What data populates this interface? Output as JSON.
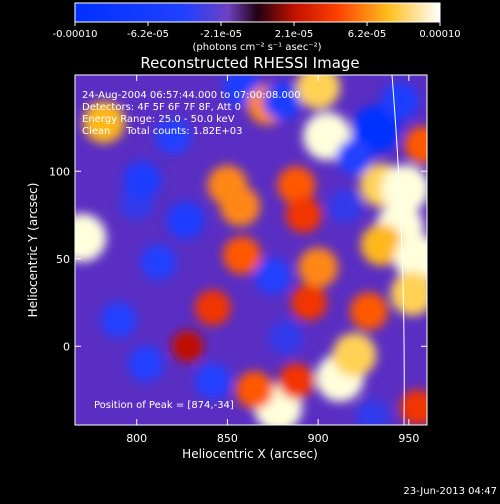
{
  "chart_data": {
    "type": "heatmap",
    "title": "Reconstructed RHESSI Image",
    "xlabel": "Heliocentric X (arcsec)",
    "ylabel": "Heliocentric Y (arcsec)",
    "xlim": [
      766,
      960
    ],
    "ylim": [
      -45,
      155
    ],
    "x_ticks": [
      800,
      850,
      900,
      950
    ],
    "y_ticks": [
      0,
      50,
      100
    ],
    "grid": false,
    "colorbar": {
      "position": "top",
      "range": [
        -0.0001,
        0.0001
      ],
      "ticks": [
        "-0.00010",
        "-6.2e-05",
        "-2.1e-05",
        "2.1e-05",
        "6.2e-05",
        "0.00010"
      ],
      "units_label": "(photons cm⁻² s⁻¹ asec⁻²)"
    },
    "annotations": [
      "24-Aug-2004 06:57:44.000 to 07:00:08.000",
      "Detectors: 4F 5F 6F 7F 8F, Att 0",
      "Energy Range: 25.0 - 50.0 keV",
      "Clean     Total counts: 1.82E+03"
    ],
    "peak_label": "Position of Peak = [874,-34]",
    "peak_position": [
      874,
      -34
    ],
    "blobs": [
      {
        "x": 770,
        "y": 62,
        "v": 0.0001
      },
      {
        "x": 782,
        "y": 128,
        "v": 7e-05
      },
      {
        "x": 800,
        "y": 82,
        "v": -3e-05
      },
      {
        "x": 803,
        "y": 95,
        "v": -5e-05
      },
      {
        "x": 820,
        "y": 120,
        "v": -4e-05
      },
      {
        "x": 858,
        "y": 148,
        "v": -5e-05
      },
      {
        "x": 872,
        "y": 138,
        "v": 6e-05
      },
      {
        "x": 850,
        "y": 92,
        "v": 6e-05
      },
      {
        "x": 857,
        "y": 80,
        "v": 6e-05
      },
      {
        "x": 858,
        "y": 52,
        "v": 5e-05
      },
      {
        "x": 842,
        "y": 22,
        "v": 4e-05
      },
      {
        "x": 827,
        "y": 72,
        "v": -5e-05
      },
      {
        "x": 812,
        "y": 48,
        "v": -4e-05
      },
      {
        "x": 790,
        "y": 15,
        "v": -4e-05
      },
      {
        "x": 805,
        "y": -10,
        "v": -4e-05
      },
      {
        "x": 842,
        "y": -20,
        "v": -4e-05
      },
      {
        "x": 828,
        "y": 0,
        "v": 2e-05
      },
      {
        "x": 880,
        "y": 140,
        "v": -5e-05
      },
      {
        "x": 900,
        "y": 148,
        "v": 8e-05
      },
      {
        "x": 905,
        "y": 120,
        "v": 0.0001
      },
      {
        "x": 888,
        "y": 92,
        "v": 5e-05
      },
      {
        "x": 892,
        "y": 75,
        "v": 4e-05
      },
      {
        "x": 900,
        "y": 45,
        "v": 6e-05
      },
      {
        "x": 895,
        "y": 25,
        "v": 4e-05
      },
      {
        "x": 875,
        "y": 40,
        "v": -4e-05
      },
      {
        "x": 882,
        "y": 5,
        "v": -3e-05
      },
      {
        "x": 878,
        "y": -35,
        "v": 0.0001
      },
      {
        "x": 865,
        "y": -25,
        "v": 5e-05
      },
      {
        "x": 888,
        "y": -20,
        "v": 4e-05
      },
      {
        "x": 912,
        "y": -18,
        "v": 0.0001
      },
      {
        "x": 920,
        "y": -5,
        "v": 8e-05
      },
      {
        "x": 928,
        "y": 20,
        "v": 5e-05
      },
      {
        "x": 935,
        "y": 92,
        "v": 8e-05
      },
      {
        "x": 948,
        "y": 90,
        "v": 0.0001
      },
      {
        "x": 945,
        "y": 68,
        "v": 0.0001
      },
      {
        "x": 935,
        "y": 58,
        "v": 7e-05
      },
      {
        "x": 955,
        "y": 50,
        "v": 0.0001
      },
      {
        "x": 952,
        "y": 30,
        "v": 8e-05
      },
      {
        "x": 958,
        "y": 115,
        "v": 5e-05
      },
      {
        "x": 932,
        "y": 124,
        "v": -0.0001
      },
      {
        "x": 945,
        "y": 140,
        "v": -5e-05
      },
      {
        "x": 920,
        "y": 108,
        "v": -4e-05
      },
      {
        "x": 915,
        "y": 80,
        "v": -3e-05
      },
      {
        "x": 955,
        "y": -35,
        "v": 4e-05
      },
      {
        "x": 930,
        "y": -40,
        "v": -3e-05
      }
    ]
  },
  "timestamp": "23-Jun-2013 04:47"
}
